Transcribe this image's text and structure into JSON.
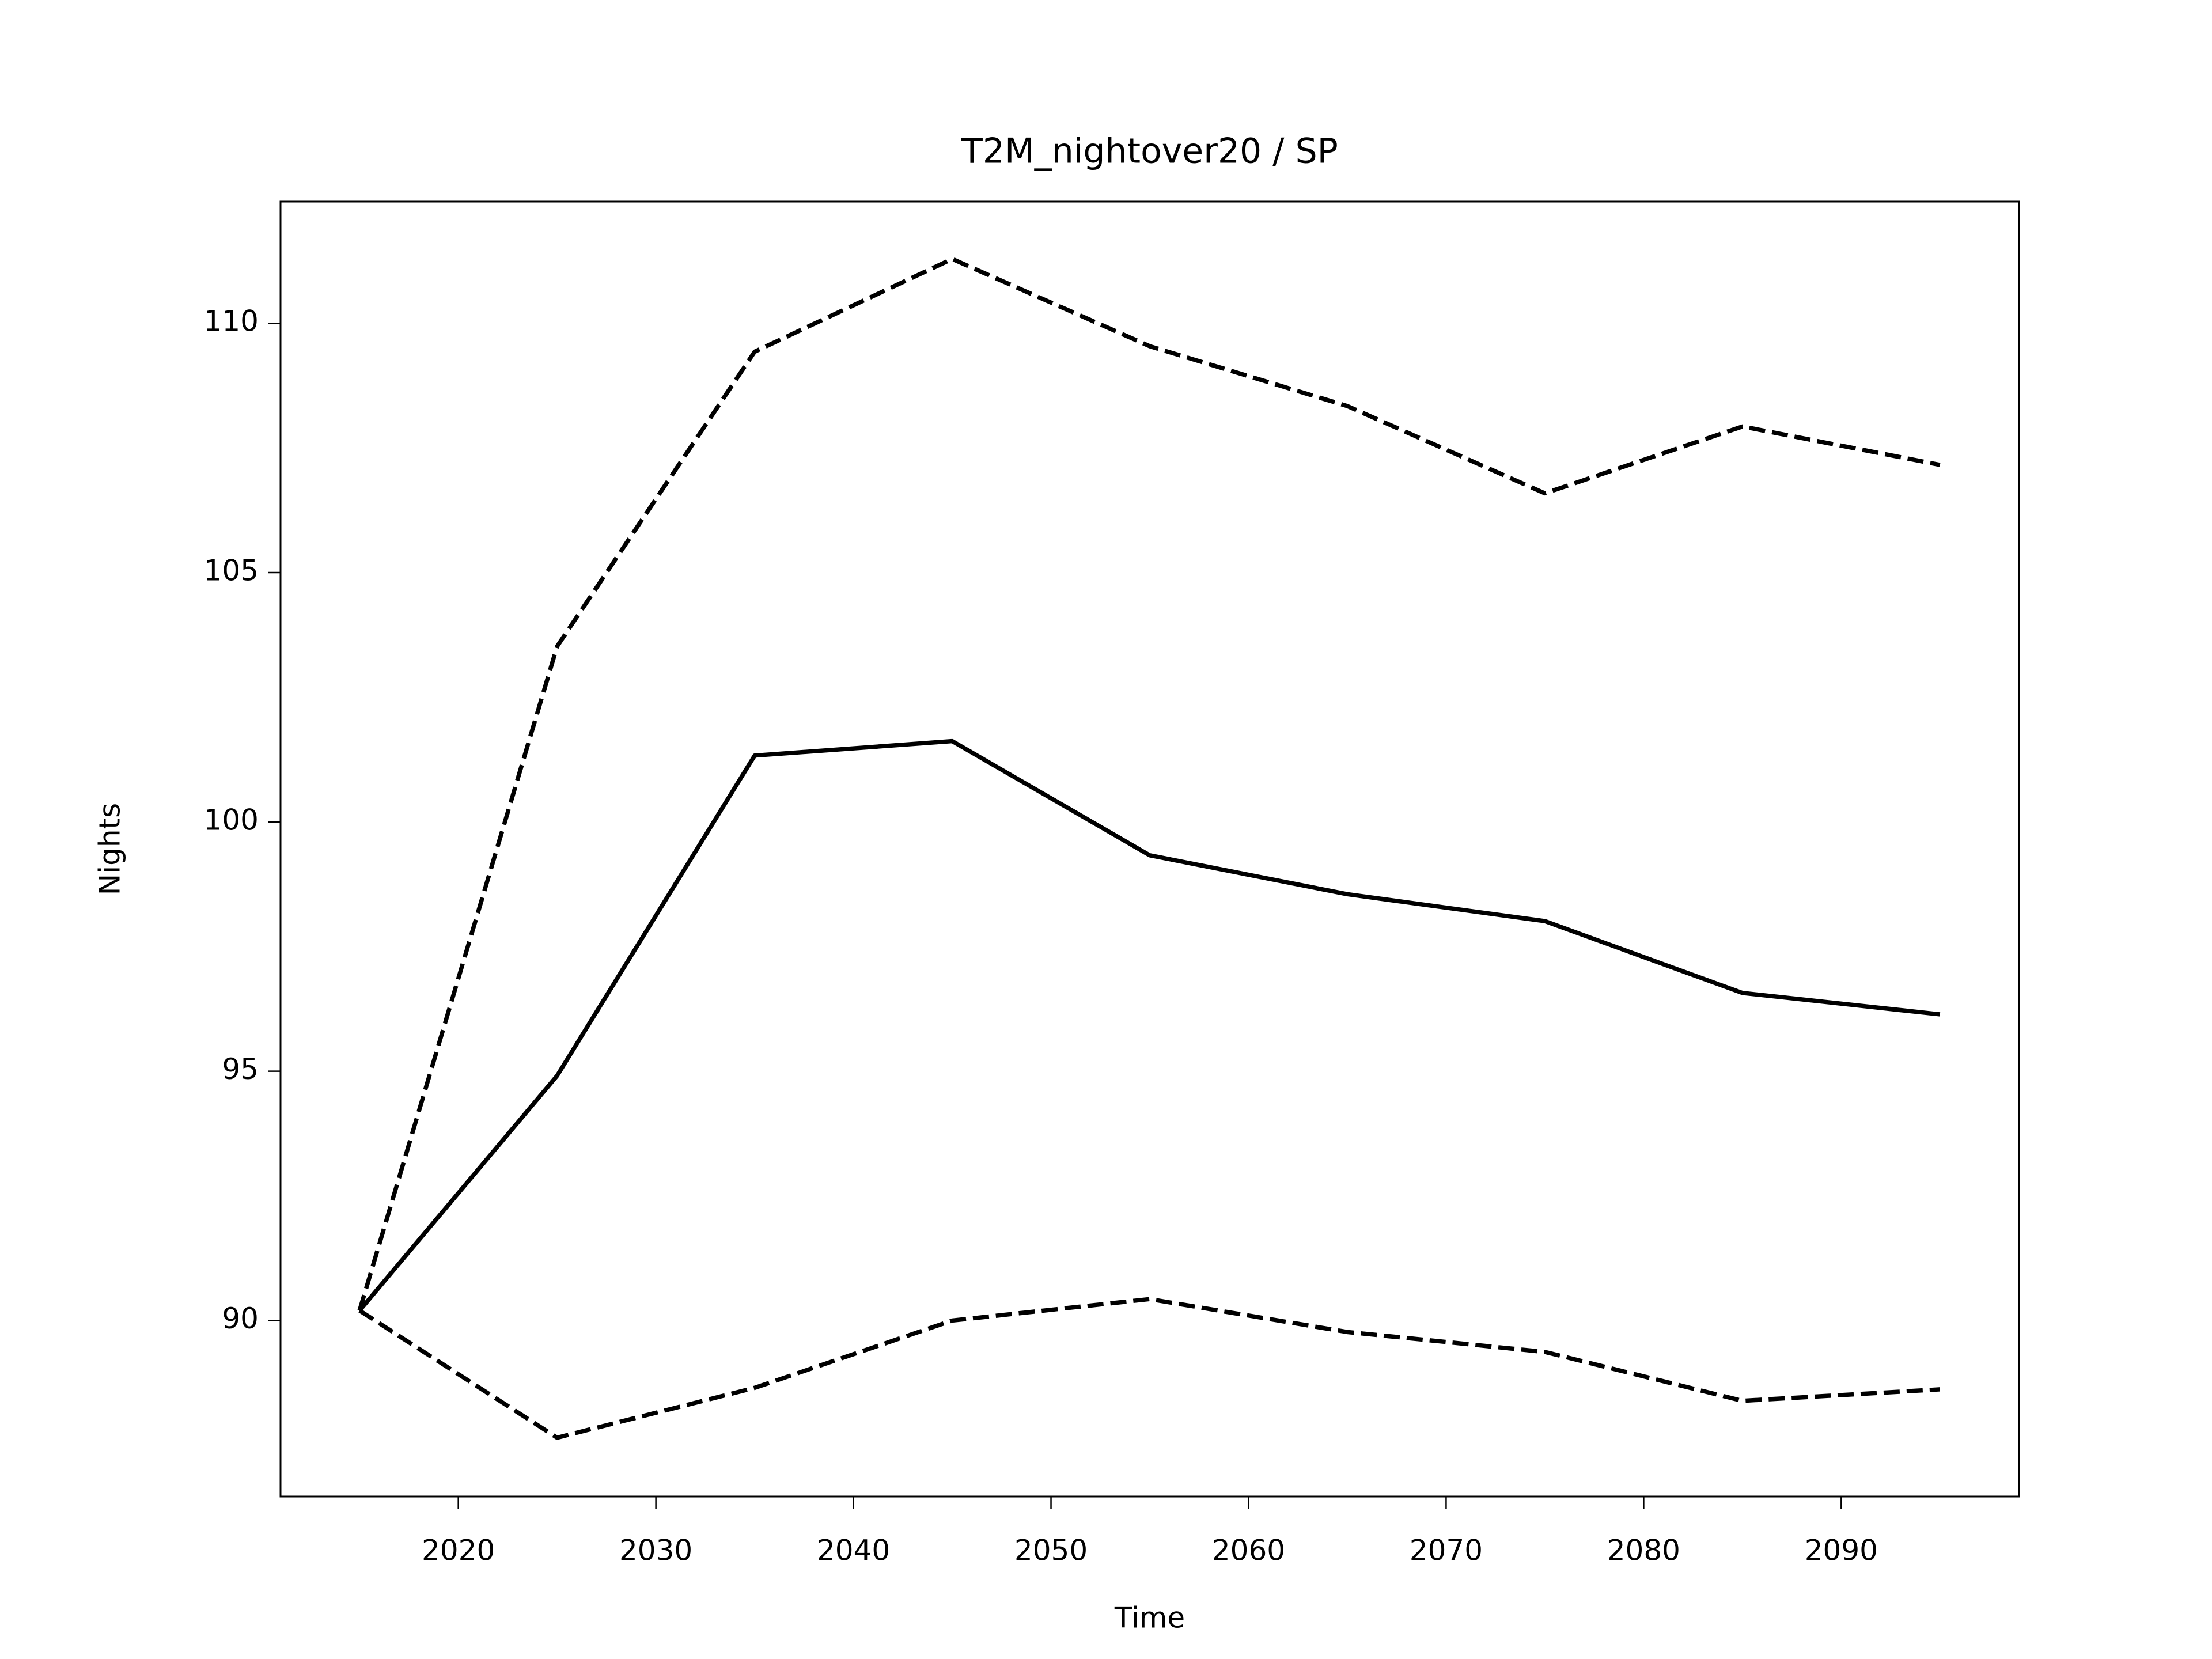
{
  "chart_data": {
    "type": "line",
    "title": "T2M_nightover20 / SP",
    "xlabel": "Time",
    "ylabel": "Nights",
    "x": [
      2015,
      2025,
      2035,
      2045,
      2055,
      2065,
      2075,
      2085,
      2095
    ],
    "series": [
      {
        "color": "#000000",
        "linestyle": "solid",
        "values": [
          90.2,
          94.91,
          101.33,
          101.62,
          99.33,
          98.55,
          98.01,
          96.57,
          96.14
        ]
      },
      {
        "color": "#000000",
        "linestyle": "dashed",
        "values": [
          90.2,
          103.52,
          109.43,
          111.29,
          109.54,
          108.34,
          106.59,
          107.93,
          107.16
        ]
      },
      {
        "color": "#000000",
        "linestyle": "dashed",
        "values": [
          90.2,
          87.65,
          88.65,
          90.0,
          90.43,
          89.77,
          89.37,
          88.39,
          88.62
        ]
      }
    ],
    "xlim": [
      2011,
      2099
    ],
    "xticks": [
      2020,
      2030,
      2040,
      2050,
      2060,
      2070,
      2080,
      2090
    ],
    "ylim": [
      86.47,
      112.44
    ],
    "yticks": [
      90,
      95,
      100,
      105,
      110
    ],
    "grid": false
  }
}
